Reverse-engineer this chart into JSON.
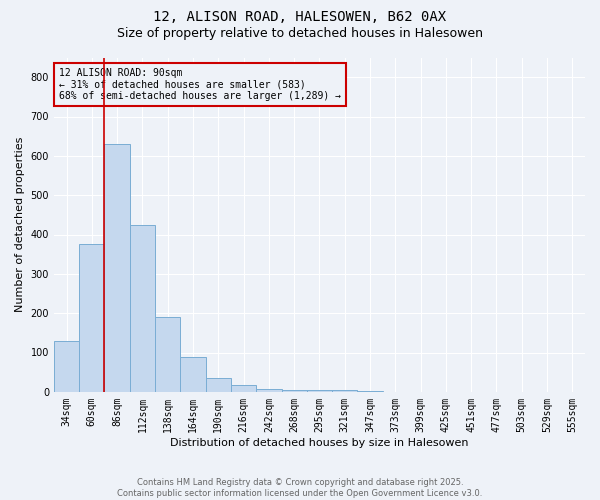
{
  "title1": "12, ALISON ROAD, HALESOWEN, B62 0AX",
  "title2": "Size of property relative to detached houses in Halesowen",
  "xlabel": "Distribution of detached houses by size in Halesowen",
  "ylabel": "Number of detached properties",
  "bar_labels": [
    "34sqm",
    "60sqm",
    "86sqm",
    "112sqm",
    "138sqm",
    "164sqm",
    "190sqm",
    "216sqm",
    "242sqm",
    "268sqm",
    "295sqm",
    "321sqm",
    "347sqm",
    "373sqm",
    "399sqm",
    "425sqm",
    "451sqm",
    "477sqm",
    "503sqm",
    "529sqm",
    "555sqm"
  ],
  "bar_values": [
    130,
    375,
    630,
    425,
    190,
    88,
    35,
    18,
    8,
    5,
    5,
    5,
    3,
    0,
    0,
    0,
    0,
    0,
    0,
    0,
    0
  ],
  "bar_color": "#c5d8ee",
  "bar_edge_color": "#7aadd4",
  "annotation_text": "12 ALISON ROAD: 90sqm\n← 31% of detached houses are smaller (583)\n68% of semi-detached houses are larger (1,289) →",
  "vline_x_idx": 2,
  "vline_color": "#cc0000",
  "annotation_box_color": "#cc0000",
  "annotation_fontsize": 7,
  "title_fontsize1": 10,
  "title_fontsize2": 9,
  "label_fontsize": 8,
  "tick_fontsize": 7,
  "bg_color": "#eef2f8",
  "grid_color": "#ffffff",
  "footer_text": "Contains HM Land Registry data © Crown copyright and database right 2025.\nContains public sector information licensed under the Open Government Licence v3.0.",
  "ylim": [
    0,
    850
  ],
  "yticks": [
    0,
    100,
    200,
    300,
    400,
    500,
    600,
    700,
    800
  ]
}
